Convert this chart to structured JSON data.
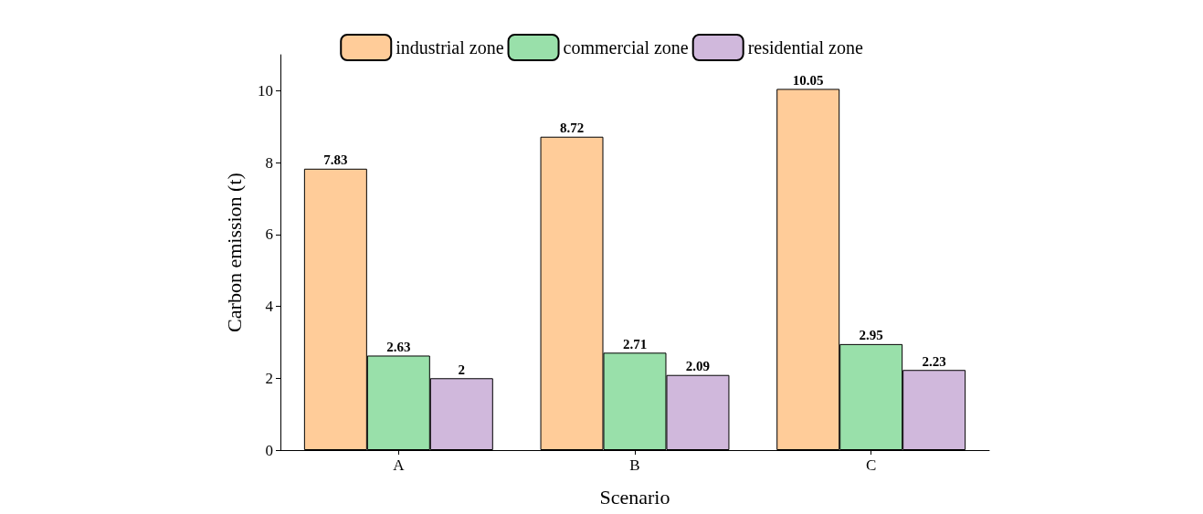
{
  "chart_data": {
    "type": "bar",
    "xlabel": "Scenario",
    "ylabel": "Carbon emission (t)",
    "categories": [
      "A",
      "B",
      "C"
    ],
    "series": [
      {
        "name": "industrial zone",
        "color": "#ffcc99",
        "values": [
          7.83,
          8.72,
          10.05
        ]
      },
      {
        "name": "commercial zone",
        "color": "#99e0aa",
        "values": [
          2.63,
          2.71,
          2.95
        ]
      },
      {
        "name": "residential zone",
        "color": "#d0b8dc",
        "values": [
          2,
          2.09,
          2.23
        ]
      }
    ],
    "ylim": [
      0,
      11
    ],
    "yticks": [
      0,
      2,
      4,
      6,
      8,
      10
    ],
    "grid": false,
    "legend": "top",
    "data_labels": true
  }
}
